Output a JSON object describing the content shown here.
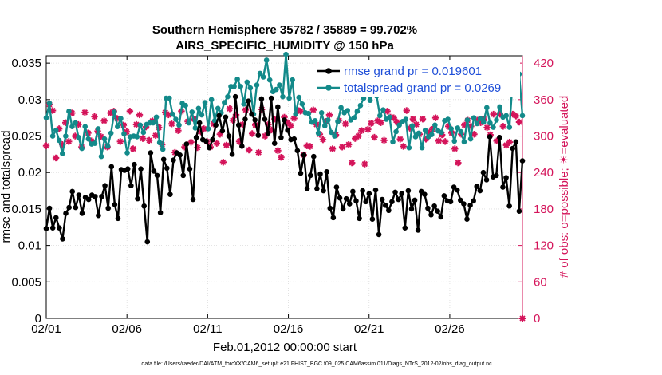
{
  "chart_data": {
    "type": "line",
    "title": "Southern Hemisphere 35782 / 35889 = 99.702%",
    "subtitle": "AIRS_SPECIFIC_HUMIDITY @ 150 hPa",
    "xlabel": "Feb.01,2012 00:00:00 start",
    "ylabel": "rmse and totalspread",
    "y2label": "# of obs: o=possible; ✴=evaluated",
    "footnote": "data file: /Users/raeder/DAI/ATM_forcXX/CAM6_setup/f.e21.FHIST_BGC.f09_025.CAM6assim.011/Diags_NTrS_2012-02/obs_diag_output.nc",
    "xlim": [
      0,
      29.5
    ],
    "ylim": [
      0,
      0.036
    ],
    "y2lim": [
      0,
      432
    ],
    "xticks": [
      0,
      5,
      10,
      15,
      20,
      25
    ],
    "xtick_labels": [
      "02/01",
      "02/06",
      "02/11",
      "02/16",
      "02/21",
      "02/26"
    ],
    "yticks": [
      0,
      0.005,
      0.01,
      0.015,
      0.02,
      0.025,
      0.03,
      0.035
    ],
    "ytick_labels": [
      "0",
      "0.005",
      "0.01",
      "0.015",
      "0.02",
      "0.025",
      "0.03",
      "0.035"
    ],
    "y2ticks": [
      0,
      60,
      120,
      180,
      240,
      300,
      360,
      420
    ],
    "y2tick_labels": [
      "0",
      "60",
      "120",
      "180",
      "240",
      "300",
      "360",
      "420"
    ],
    "colors": {
      "rmse": "#000000",
      "spread": "#138a8a",
      "obs": "#d4145a",
      "legend_text": "#1f4fd8"
    },
    "series": [
      {
        "name": "rmse grand pr = 0.019601",
        "axis": "left",
        "values": [
          0.0123,
          0.0151,
          0.0124,
          0.0138,
          0.0124,
          0.0109,
          0.0144,
          0.0152,
          0.0174,
          0.0152,
          0.0169,
          0.0144,
          0.0166,
          0.0163,
          0.0169,
          0.0167,
          0.0141,
          0.0167,
          0.0182,
          0.0151,
          0.0208,
          0.0156,
          0.0137,
          0.0204,
          0.0203,
          0.0205,
          0.0182,
          0.0211,
          0.0164,
          0.0205,
          0.0154,
          0.0105,
          0.0227,
          0.0202,
          0.0196,
          0.0145,
          0.0218,
          0.0206,
          0.017,
          0.0217,
          0.0227,
          0.0224,
          0.0196,
          0.0239,
          0.0205,
          0.0163,
          0.0248,
          0.0268,
          0.0245,
          0.0243,
          0.0234,
          0.0245,
          0.0265,
          0.0278,
          0.0257,
          0.0276,
          0.025,
          0.0225,
          0.0304,
          0.0265,
          0.0236,
          0.0273,
          0.0298,
          0.028,
          0.0272,
          0.0251,
          0.0301,
          0.0273,
          0.0254,
          0.0302,
          0.024,
          0.029,
          0.0248,
          0.0272,
          0.0258,
          0.0245,
          0.0246,
          0.023,
          0.0199,
          0.0224,
          0.0178,
          0.0196,
          0.0222,
          0.0178,
          0.0198,
          0.0175,
          0.0201,
          0.0151,
          0.0138,
          0.018,
          0.0165,
          0.015,
          0.0164,
          0.0157,
          0.0174,
          0.0161,
          0.0137,
          0.0175,
          0.016,
          0.0171,
          0.0136,
          0.0176,
          0.0115,
          0.0163,
          0.0155,
          0.0148,
          0.016,
          0.0173,
          0.0163,
          0.0171,
          0.0124,
          0.0175,
          0.015,
          0.0162,
          0.0121,
          0.0174,
          0.017,
          0.0151,
          0.0142,
          0.0154,
          0.0147,
          0.0139,
          0.0168,
          0.0161,
          0.016,
          0.018,
          0.0176,
          0.0162,
          0.0157,
          0.0136,
          0.0155,
          0.0161,
          0.0181,
          0.0175,
          0.02,
          0.019,
          0.0249,
          0.0194,
          0.0196,
          0.0248,
          0.018,
          0.0193,
          0.0154,
          0.0233,
          0.0242,
          0.0147,
          0.0216
        ]
      },
      {
        "name": "totalspread grand pr = 0.0269",
        "axis": "left",
        "values": [
          0.0275,
          0.0295,
          0.025,
          0.0258,
          0.0244,
          0.0226,
          0.025,
          0.0284,
          0.0263,
          0.0268,
          0.0248,
          0.0233,
          0.0263,
          0.0246,
          0.0239,
          0.024,
          0.026,
          0.0222,
          0.0246,
          0.0236,
          0.0254,
          0.0283,
          0.0263,
          0.0274,
          0.0253,
          0.0227,
          0.0249,
          0.025,
          0.0249,
          0.0265,
          0.0255,
          0.0266,
          0.0268,
          0.0268,
          0.0276,
          0.0241,
          0.0232,
          0.0302,
          0.0302,
          0.028,
          0.0273,
          0.0265,
          0.0295,
          0.0292,
          0.0268,
          0.0283,
          0.0261,
          0.0288,
          0.0279,
          0.0296,
          0.026,
          0.03,
          0.0271,
          0.0288,
          0.0282,
          0.0296,
          0.0304,
          0.0318,
          0.0318,
          0.0328,
          0.0318,
          0.0294,
          0.0324,
          0.0316,
          0.028,
          0.032,
          0.0336,
          0.0331,
          0.0354,
          0.0327,
          0.0311,
          0.0314,
          0.032,
          0.0304,
          0.0362,
          0.0302,
          0.0327,
          0.028,
          0.0303,
          0.0294,
          0.0282,
          0.0281,
          0.0269,
          0.0271,
          0.0254,
          0.0282,
          0.0264,
          0.0272,
          0.0255,
          0.025,
          0.027,
          0.0289,
          0.0282,
          0.0285,
          0.0272,
          0.0275,
          0.0284,
          0.0292,
          0.0302,
          0.0309,
          0.0299,
          0.0316,
          0.0305,
          0.0278,
          0.0286,
          0.0273,
          0.0276,
          0.0242,
          0.0256,
          0.0265,
          0.027,
          0.0273,
          0.0234,
          0.0264,
          0.0249,
          0.0254,
          0.0234,
          0.0258,
          0.0249,
          0.0252,
          0.0265,
          0.0257,
          0.0255,
          0.0271,
          0.0273,
          0.026,
          0.0243,
          0.0261,
          0.0256,
          0.0242,
          0.0272,
          0.0246,
          0.0275,
          0.0267,
          0.0274,
          0.0269,
          0.0289,
          0.0268,
          0.0262,
          0.0272,
          0.029,
          0.0276,
          0.0278,
          0.0262,
          0.0327,
          0.0317,
          0.0335,
          0.0278
        ]
      },
      {
        "name": "# obs evaluated",
        "axis": "right",
        "marker": "asterisk",
        "values": [
          284,
          352,
          342,
          264,
          312,
          286,
          322,
          291,
          338,
          300,
          319,
          282,
          339,
          305,
          292,
          332,
          308,
          299,
          325,
          282,
          338,
          341,
          329,
          291,
          318,
          307,
          341,
          279,
          319,
          335,
          296,
          315,
          293,
          325,
          301,
          314,
          286,
          339,
          335,
          320,
          273,
          309,
          341,
          282,
          324,
          290,
          328,
          281,
          307,
          312,
          291,
          282,
          320,
          288,
          303,
          257,
          285,
          345,
          326,
          335,
          291,
          319,
          343,
          277,
          304,
          318,
          273,
          344,
          300,
          319,
          310,
          328,
          276,
          265,
          331,
          322,
          317,
          329,
          343,
          341,
          269,
          284,
          283,
          343,
          319,
          303,
          294,
          324,
          335,
          279,
          302,
          326,
          282,
          320,
          286,
          256,
          296,
          300,
          309,
          254,
          311,
          321,
          298,
          325,
          322,
          293,
          341,
          331,
          330,
          323,
          295,
          283,
          342,
          313,
          328,
          319,
          303,
          328,
          295,
          305,
          311,
          330,
          292,
          302,
          291,
          316,
          305,
          279,
          256,
          303,
          318,
          326,
          316,
          303,
          326,
          322,
          328,
          314,
          302,
          336,
          292,
          336,
          316,
          285,
          290,
          336,
          333,
          323,
          0
        ]
      }
    ]
  }
}
